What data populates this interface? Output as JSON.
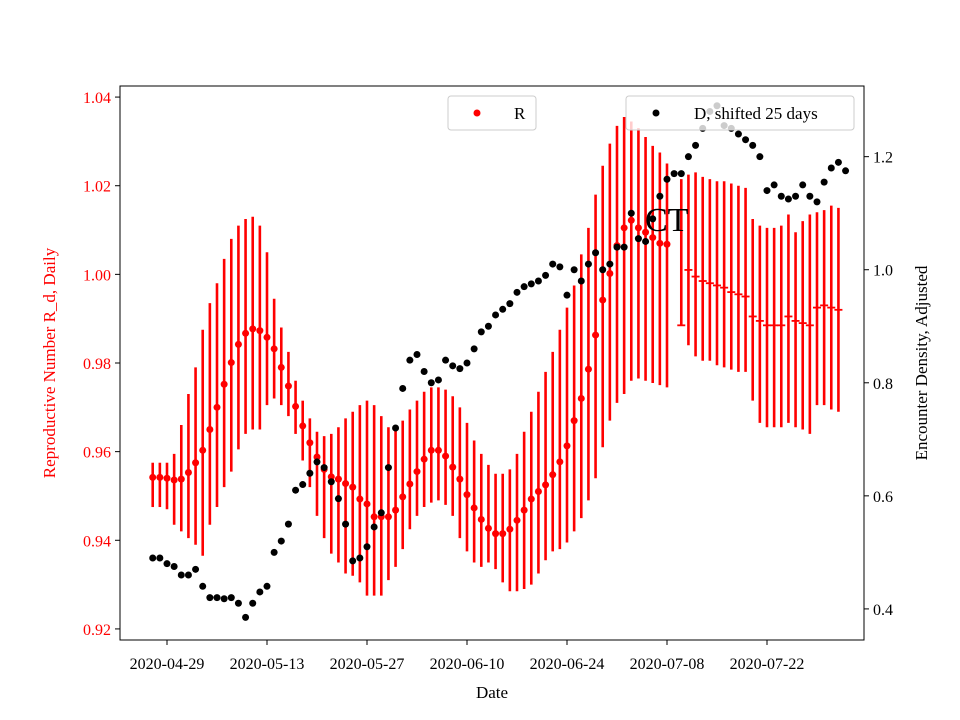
{
  "chart_data": {
    "type": "scatter",
    "title": "",
    "annotation": "CT",
    "xlabel": "Date",
    "ylabel_left": "Reproductive Number R_d, Daily",
    "ylabel_right": "Encounter Density, Adjusted",
    "x_tick_labels": [
      "2020-04-29",
      "2020-05-13",
      "2020-05-27",
      "2020-06-10",
      "2020-06-24",
      "2020-07-08",
      "2020-07-22"
    ],
    "left_axis": {
      "ylim": [
        0.9175,
        1.0425
      ],
      "ticks": [
        "0.92",
        "0.94",
        "0.96",
        "0.98",
        "1.00",
        "1.02",
        "1.04"
      ],
      "color": "#ff0000"
    },
    "right_axis": {
      "ylim": [
        0.345,
        1.325
      ],
      "ticks": [
        "0.4",
        "0.6",
        "0.8",
        "1.0",
        "1.2"
      ],
      "color": "#000000"
    },
    "legend": [
      {
        "label": "R",
        "color": "#ff0000",
        "position": "top-center"
      },
      {
        "label": "D, shifted 25 days",
        "color": "#000000",
        "position": "top-right"
      }
    ],
    "series_R": {
      "name": "R",
      "color": "#ff0000",
      "start_date": "2020-04-27",
      "days_per_point": 1,
      "values": [
        0.9542,
        0.9542,
        0.954,
        0.9536,
        0.9538,
        0.9553,
        0.9575,
        0.9603,
        0.965,
        0.97,
        0.9752,
        0.9801,
        0.9842,
        0.9867,
        0.9877,
        0.9873,
        0.9858,
        0.9832,
        0.979,
        0.9748,
        0.9702,
        0.9658,
        0.962,
        0.9588,
        0.956,
        0.9543,
        0.9538,
        0.9528,
        0.952,
        0.9493,
        0.9482,
        0.9453,
        0.9453,
        0.9453,
        0.9468,
        0.9498,
        0.9527,
        0.9555,
        0.9583,
        0.9603,
        0.9603,
        0.959,
        0.9565,
        0.9538,
        0.9503,
        0.9473,
        0.9447,
        0.9427,
        0.9415,
        0.9415,
        0.9425,
        0.9445,
        0.9468,
        0.9493,
        0.951,
        0.9525,
        0.9548,
        0.9577,
        0.9613,
        0.967,
        0.972,
        0.9786,
        0.9863,
        0.9942,
        1.0002,
        1.0065,
        1.0105,
        1.0122,
        1.0105,
        1.0095,
        1.0083,
        1.007,
        1.0068
      ],
      "err_lower": [
        0.9475,
        0.9475,
        0.947,
        0.9435,
        0.942,
        0.9405,
        0.939,
        0.9365,
        0.9435,
        0.9475,
        0.952,
        0.9555,
        0.9605,
        0.964,
        0.965,
        0.965,
        0.9705,
        0.972,
        0.9705,
        0.968,
        0.964,
        0.958,
        0.952,
        0.9455,
        0.9405,
        0.937,
        0.935,
        0.9325,
        0.932,
        0.9305,
        0.9275,
        0.9275,
        0.9275,
        0.931,
        0.934,
        0.938,
        0.9425,
        0.9455,
        0.9475,
        0.9485,
        0.949,
        0.948,
        0.9455,
        0.9405,
        0.9375,
        0.935,
        0.934,
        0.935,
        0.9335,
        0.9305,
        0.9285,
        0.9285,
        0.929,
        0.93,
        0.9325,
        0.9355,
        0.9375,
        0.938,
        0.9395,
        0.942,
        0.945,
        0.949,
        0.954,
        0.961,
        0.967,
        0.971,
        0.973,
        0.976,
        0.9765,
        0.976,
        0.9755,
        0.975,
        0.9745
      ],
      "err_upper": [
        0.9575,
        0.9575,
        0.9575,
        0.9595,
        0.966,
        0.973,
        0.979,
        0.9875,
        0.9935,
        0.998,
        1.0035,
        1.008,
        1.011,
        1.0125,
        1.013,
        1.011,
        1.005,
        0.9945,
        0.988,
        0.9825,
        0.976,
        0.9715,
        0.9675,
        0.9645,
        0.9635,
        0.964,
        0.9655,
        0.9675,
        0.969,
        0.9705,
        0.9715,
        0.9705,
        0.968,
        0.9655,
        0.9655,
        0.967,
        0.9695,
        0.9715,
        0.9735,
        0.9745,
        0.9745,
        0.974,
        0.9725,
        0.97,
        0.9665,
        0.9625,
        0.9595,
        0.957,
        0.955,
        0.955,
        0.956,
        0.9595,
        0.9645,
        0.969,
        0.9735,
        0.978,
        0.9825,
        0.9875,
        0.9925,
        0.9975,
        1.0045,
        1.0105,
        1.018,
        1.0245,
        1.0295,
        1.0335,
        1.0355,
        1.0345,
        1.033,
        1.031,
        1.029,
        1.0275,
        1.025
      ]
    },
    "series_R_range_only": {
      "start_date": "2020-07-10",
      "days_per_point": 1,
      "err_lower": [
        0.9885,
        0.984,
        0.9815,
        0.9805,
        0.9805,
        0.9795,
        0.979,
        0.9785,
        0.978,
        0.978,
        0.9715,
        0.9665,
        0.9655,
        0.9655,
        0.9655,
        0.9665,
        0.9655,
        0.965,
        0.964,
        0.9705,
        0.9705,
        0.9695,
        0.969
      ],
      "err_upper": [
        1.0215,
        1.0225,
        1.023,
        1.022,
        1.0215,
        1.021,
        1.021,
        1.0205,
        1.02,
        1.0195,
        1.0125,
        1.011,
        1.0105,
        1.0105,
        1.011,
        1.0135,
        1.0095,
        1.012,
        1.0135,
        1.014,
        1.0145,
        1.0155,
        1.015
      ]
    },
    "series_R_dashes": [
      {
        "date": "2020-07-10",
        "value": 0.9885
      },
      {
        "date": "2020-07-11",
        "value": 1.001
      },
      {
        "date": "2020-07-12",
        "value": 0.9995
      },
      {
        "date": "2020-07-13",
        "value": 0.9985
      },
      {
        "date": "2020-07-14",
        "value": 0.998
      },
      {
        "date": "2020-07-15",
        "value": 0.9975
      },
      {
        "date": "2020-07-16",
        "value": 0.997
      },
      {
        "date": "2020-07-17",
        "value": 0.996
      },
      {
        "date": "2020-07-18",
        "value": 0.9955
      },
      {
        "date": "2020-07-19",
        "value": 0.995
      },
      {
        "date": "2020-07-20",
        "value": 0.9905
      },
      {
        "date": "2020-07-21",
        "value": 0.9895
      },
      {
        "date": "2020-07-22",
        "value": 0.9885
      },
      {
        "date": "2020-07-23",
        "value": 0.9885
      },
      {
        "date": "2020-07-24",
        "value": 0.9885
      },
      {
        "date": "2020-07-25",
        "value": 0.9905
      },
      {
        "date": "2020-07-26",
        "value": 0.9895
      },
      {
        "date": "2020-07-27",
        "value": 0.989
      },
      {
        "date": "2020-07-28",
        "value": 0.9885
      },
      {
        "date": "2020-07-29",
        "value": 0.9925
      },
      {
        "date": "2020-07-30",
        "value": 0.993
      },
      {
        "date": "2020-07-31",
        "value": 0.9925
      },
      {
        "date": "2020-08-01",
        "value": 0.992
      }
    ],
    "series_D": {
      "name": "D, shifted 25 days",
      "color": "#000000",
      "points": [
        {
          "date": "2020-04-27",
          "value": 0.49
        },
        {
          "date": "2020-04-28",
          "value": 0.49
        },
        {
          "date": "2020-04-29",
          "value": 0.48
        },
        {
          "date": "2020-04-30",
          "value": 0.475
        },
        {
          "date": "2020-05-01",
          "value": 0.46
        },
        {
          "date": "2020-05-02",
          "value": 0.46
        },
        {
          "date": "2020-05-03",
          "value": 0.47
        },
        {
          "date": "2020-05-04",
          "value": 0.44
        },
        {
          "date": "2020-05-05",
          "value": 0.42
        },
        {
          "date": "2020-05-06",
          "value": 0.42
        },
        {
          "date": "2020-05-07",
          "value": 0.418
        },
        {
          "date": "2020-05-08",
          "value": 0.42
        },
        {
          "date": "2020-05-09",
          "value": 0.41
        },
        {
          "date": "2020-05-10",
          "value": 0.385
        },
        {
          "date": "2020-05-11",
          "value": 0.41
        },
        {
          "date": "2020-05-12",
          "value": 0.43
        },
        {
          "date": "2020-05-13",
          "value": 0.44
        },
        {
          "date": "2020-05-14",
          "value": 0.5
        },
        {
          "date": "2020-05-15",
          "value": 0.52
        },
        {
          "date": "2020-05-16",
          "value": 0.55
        },
        {
          "date": "2020-05-17",
          "value": 0.61
        },
        {
          "date": "2020-05-18",
          "value": 0.62
        },
        {
          "date": "2020-05-19",
          "value": 0.64
        },
        {
          "date": "2020-05-20",
          "value": 0.66
        },
        {
          "date": "2020-05-21",
          "value": 0.65
        },
        {
          "date": "2020-05-22",
          "value": 0.625
        },
        {
          "date": "2020-05-23",
          "value": 0.595
        },
        {
          "date": "2020-05-24",
          "value": 0.55
        },
        {
          "date": "2020-05-25",
          "value": 0.485
        },
        {
          "date": "2020-05-26",
          "value": 0.49
        },
        {
          "date": "2020-05-27",
          "value": 0.51
        },
        {
          "date": "2020-05-28",
          "value": 0.545
        },
        {
          "date": "2020-05-29",
          "value": 0.57
        },
        {
          "date": "2020-05-30",
          "value": 0.65
        },
        {
          "date": "2020-05-31",
          "value": 0.72
        },
        {
          "date": "2020-06-01",
          "value": 0.79
        },
        {
          "date": "2020-06-02",
          "value": 0.84
        },
        {
          "date": "2020-06-03",
          "value": 0.85
        },
        {
          "date": "2020-06-04",
          "value": 0.82
        },
        {
          "date": "2020-06-05",
          "value": 0.8
        },
        {
          "date": "2020-06-06",
          "value": 0.805
        },
        {
          "date": "2020-06-07",
          "value": 0.84
        },
        {
          "date": "2020-06-08",
          "value": 0.83
        },
        {
          "date": "2020-06-09",
          "value": 0.825
        },
        {
          "date": "2020-06-10",
          "value": 0.835
        },
        {
          "date": "2020-06-11",
          "value": 0.86
        },
        {
          "date": "2020-06-12",
          "value": 0.89
        },
        {
          "date": "2020-06-13",
          "value": 0.9
        },
        {
          "date": "2020-06-14",
          "value": 0.92
        },
        {
          "date": "2020-06-15",
          "value": 0.93
        },
        {
          "date": "2020-06-16",
          "value": 0.94
        },
        {
          "date": "2020-06-17",
          "value": 0.96
        },
        {
          "date": "2020-06-18",
          "value": 0.97
        },
        {
          "date": "2020-06-19",
          "value": 0.975
        },
        {
          "date": "2020-06-20",
          "value": 0.98
        },
        {
          "date": "2020-06-21",
          "value": 0.99
        },
        {
          "date": "2020-06-22",
          "value": 1.01
        },
        {
          "date": "2020-06-23",
          "value": 1.005
        },
        {
          "date": "2020-06-24",
          "value": 0.955
        },
        {
          "date": "2020-06-25",
          "value": 1.0
        },
        {
          "date": "2020-06-26",
          "value": 0.98
        },
        {
          "date": "2020-06-27",
          "value": 1.01
        },
        {
          "date": "2020-06-28",
          "value": 1.03
        },
        {
          "date": "2020-06-29",
          "value": 1.0
        },
        {
          "date": "2020-06-30",
          "value": 1.01
        },
        {
          "date": "2020-07-01",
          "value": 1.04
        },
        {
          "date": "2020-07-02",
          "value": 1.04
        },
        {
          "date": "2020-07-03",
          "value": 1.1
        },
        {
          "date": "2020-07-04",
          "value": 1.055
        },
        {
          "date": "2020-07-05",
          "value": 1.05
        },
        {
          "date": "2020-07-06",
          "value": 1.09
        },
        {
          "date": "2020-07-07",
          "value": 1.13
        },
        {
          "date": "2020-07-08",
          "value": 1.16
        },
        {
          "date": "2020-07-09",
          "value": 1.17
        },
        {
          "date": "2020-07-10",
          "value": 1.17
        },
        {
          "date": "2020-07-11",
          "value": 1.2
        },
        {
          "date": "2020-07-12",
          "value": 1.22
        },
        {
          "date": "2020-07-13",
          "value": 1.25
        },
        {
          "date": "2020-07-14",
          "value": 1.28
        },
        {
          "date": "2020-07-15",
          "value": 1.29
        },
        {
          "date": "2020-07-16",
          "value": 1.255
        },
        {
          "date": "2020-07-17",
          "value": 1.25
        },
        {
          "date": "2020-07-18",
          "value": 1.24
        },
        {
          "date": "2020-07-19",
          "value": 1.23
        },
        {
          "date": "2020-07-20",
          "value": 1.22
        },
        {
          "date": "2020-07-21",
          "value": 1.2
        },
        {
          "date": "2020-07-22",
          "value": 1.14
        },
        {
          "date": "2020-07-23",
          "value": 1.15
        },
        {
          "date": "2020-07-24",
          "value": 1.13
        },
        {
          "date": "2020-07-25",
          "value": 1.125
        },
        {
          "date": "2020-07-26",
          "value": 1.13
        },
        {
          "date": "2020-07-27",
          "value": 1.15
        },
        {
          "date": "2020-07-28",
          "value": 1.13
        },
        {
          "date": "2020-07-29",
          "value": 1.12
        },
        {
          "date": "2020-07-30",
          "value": 1.155
        },
        {
          "date": "2020-07-31",
          "value": 1.18
        },
        {
          "date": "2020-08-01",
          "value": 1.19
        },
        {
          "date": "2020-08-02",
          "value": 1.175
        }
      ]
    }
  }
}
